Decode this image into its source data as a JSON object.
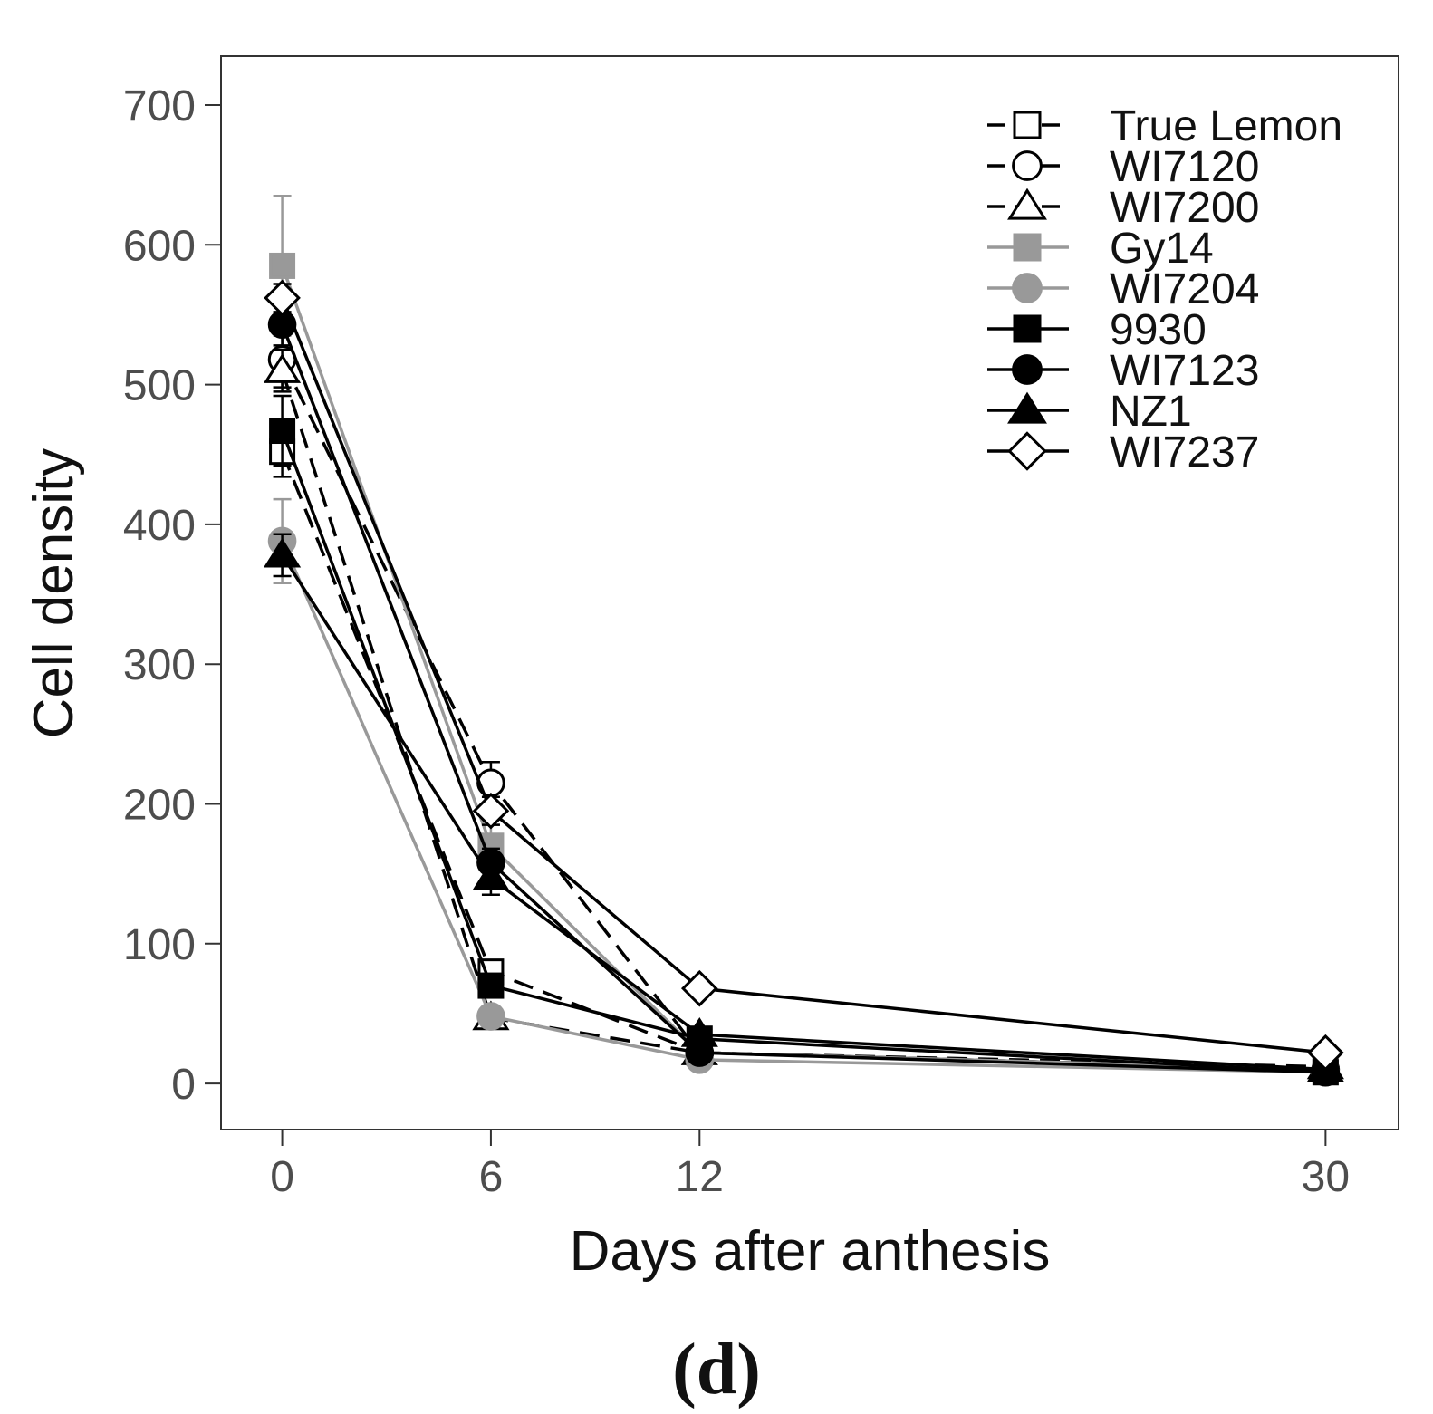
{
  "chart_data": {
    "type": "line",
    "title": "",
    "xlabel": "Days after anthesis",
    "ylabel": "Cell density",
    "x": [
      0,
      6,
      12,
      30
    ],
    "x_tick_labels": [
      "0",
      "6",
      "12",
      "30"
    ],
    "y_ticks": [
      0,
      100,
      200,
      300,
      400,
      500,
      600,
      700
    ],
    "y_tick_labels": [
      "0",
      "100",
      "200",
      "300",
      "400",
      "500",
      "600",
      "700"
    ],
    "ylim": [
      -33,
      735
    ],
    "grid": false,
    "legend_position": "top-right",
    "series": [
      {
        "name": "True Lemon",
        "values": [
          452,
          80,
          22,
          10
        ],
        "err": [
          18,
          5,
          3,
          2
        ],
        "marker": "square",
        "filled": false,
        "color": "#000000",
        "dashed": true
      },
      {
        "name": "WI7120",
        "values": [
          518,
          215,
          22,
          10
        ],
        "err": [
          20,
          15,
          3,
          2
        ],
        "marker": "circle",
        "filled": false,
        "color": "#000000",
        "dashed": true
      },
      {
        "name": "WI7200",
        "values": [
          510,
          47,
          22,
          12
        ],
        "err": [
          15,
          4,
          3,
          2
        ],
        "marker": "triangle",
        "filled": false,
        "color": "#000000",
        "dashed": true
      },
      {
        "name": "Gy14",
        "values": [
          585,
          170,
          22,
          10
        ],
        "err": [
          50,
          15,
          3,
          2
        ],
        "marker": "square",
        "filled": true,
        "color": "#999999",
        "dashed": false
      },
      {
        "name": "WI7204",
        "values": [
          388,
          48,
          17,
          8
        ],
        "err": [
          30,
          5,
          3,
          2
        ],
        "marker": "circle",
        "filled": true,
        "color": "#999999",
        "dashed": false
      },
      {
        "name": "9930",
        "values": [
          467,
          70,
          32,
          8
        ],
        "err": [
          25,
          5,
          3,
          2
        ],
        "marker": "square",
        "filled": true,
        "color": "#000000",
        "dashed": false
      },
      {
        "name": "WI7123",
        "values": [
          543,
          158,
          22,
          8
        ],
        "err": [
          15,
          10,
          3,
          2
        ],
        "marker": "circle",
        "filled": true,
        "color": "#000000",
        "dashed": false
      },
      {
        "name": "NZ1",
        "values": [
          378,
          147,
          35,
          10
        ],
        "err": [
          15,
          12,
          3,
          2
        ],
        "marker": "triangle",
        "filled": true,
        "color": "#000000",
        "dashed": false
      },
      {
        "name": "WI7237",
        "values": [
          562,
          195,
          68,
          22
        ],
        "err": [
          10,
          10,
          4,
          2
        ],
        "marker": "diamond",
        "filled": false,
        "color": "#000000",
        "dashed": false
      }
    ]
  },
  "caption": "(d)"
}
